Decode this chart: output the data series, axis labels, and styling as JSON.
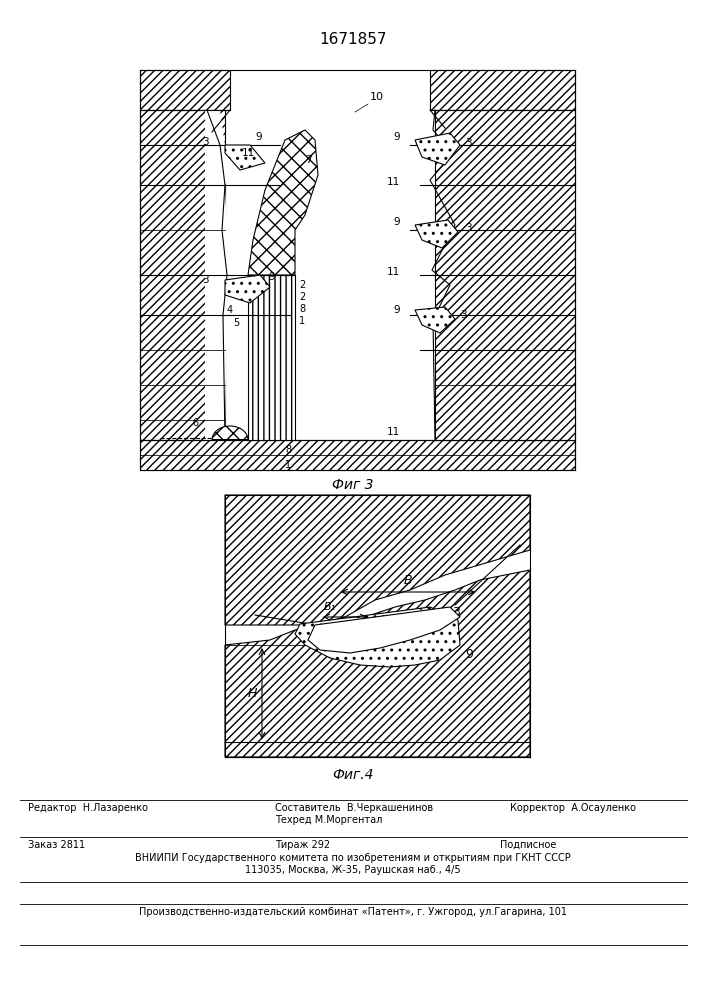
{
  "title": "1671857",
  "fig3_label": "Фиг 3",
  "fig4_label": "Фиг.4",
  "bg_color": "#ffffff",
  "line_color": "#000000",
  "footer_editor": "Редактор  Н.Лазаренко",
  "footer_composer": "Составитель  В.Черкашенинов",
  "footer_tech": "Техред М.Моргентал",
  "footer_corrector": "Корректор  А.Осауленко",
  "footer_order": "Заказ 2811",
  "footer_tirazh": "Тираж 292",
  "footer_podp": "Подписное",
  "footer_vniip": "ВНИИПИ Государственного комитета по изобретениям и открытиям при ГКНТ СССР",
  "footer_addr": "113035, Москва, Ж-35, Раушская наб., 4/5",
  "footer_patent": "Производственно-издательский комбинат «Патент», г. Ужгород, ул.Гагарина, 101"
}
